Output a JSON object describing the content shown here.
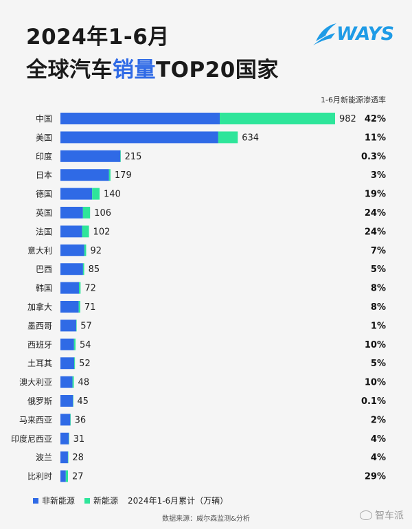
{
  "title_line1": "2024年1-6月",
  "title_line2_prefix": "全球汽车",
  "title_line2_highlight": "销量",
  "title_line2_suffix": "TOP20国家",
  "logo_text": "WAYS",
  "rate_header": "1-6月新能源渗透率",
  "legend": {
    "non_nev": "非新能源",
    "nev": "新能源",
    "note": "2024年1-6月累计（万辆）"
  },
  "source": "数据来源：威尔森监测&分析",
  "watermark": "智车派",
  "colors": {
    "non_nev": "#2f6ae6",
    "nev": "#2ee59a",
    "highlight": "#2f6ae6"
  },
  "chart_data": {
    "type": "bar",
    "orientation": "horizontal",
    "stacked": true,
    "categories": [
      "中国",
      "美国",
      "印度",
      "日本",
      "德国",
      "英国",
      "法国",
      "意大利",
      "巴西",
      "韩国",
      "加拿大",
      "墨西哥",
      "西班牙",
      "土耳其",
      "澳大利亚",
      "俄罗斯",
      "马来西亚",
      "印度尼西亚",
      "波兰",
      "比利时"
    ],
    "totals": [
      982,
      634,
      215,
      179,
      140,
      106,
      102,
      92,
      85,
      72,
      71,
      57,
      54,
      52,
      48,
      45,
      36,
      31,
      28,
      27
    ],
    "nev_penetration": [
      "42%",
      "11%",
      "0.3%",
      "3%",
      "19%",
      "24%",
      "24%",
      "7%",
      "5%",
      "8%",
      "8%",
      "1%",
      "10%",
      "5%",
      "10%",
      "0.1%",
      "2%",
      "4%",
      "4%",
      "29%"
    ],
    "nev_share": [
      0.42,
      0.11,
      0.003,
      0.03,
      0.19,
      0.24,
      0.24,
      0.07,
      0.05,
      0.08,
      0.08,
      0.01,
      0.1,
      0.05,
      0.1,
      0.001,
      0.02,
      0.04,
      0.04,
      0.29
    ],
    "series": [
      {
        "name": "非新能源",
        "color": "#2f6ae6"
      },
      {
        "name": "新能源",
        "color": "#2ee59a"
      }
    ],
    "unit": "万辆"
  }
}
